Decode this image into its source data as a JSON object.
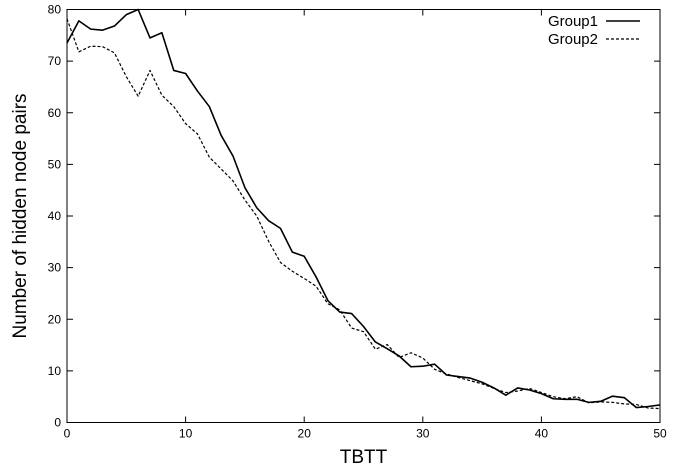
{
  "chart_data": {
    "type": "line",
    "title": "",
    "xlabel": "TBTT",
    "ylabel": "Number of hidden node pairs",
    "xlim": [
      0,
      50
    ],
    "ylim": [
      0,
      80
    ],
    "xticks": [
      0,
      10,
      20,
      30,
      40,
      50
    ],
    "yticks": [
      0,
      10,
      20,
      30,
      40,
      50,
      60,
      70,
      80
    ],
    "grid": false,
    "legend_position": "top-right",
    "x": [
      0,
      1,
      2,
      3,
      4,
      5,
      6,
      7,
      8,
      9,
      10,
      11,
      12,
      13,
      14,
      15,
      16,
      17,
      18,
      19,
      20,
      21,
      22,
      23,
      24,
      25,
      26,
      27,
      28,
      29,
      30,
      31,
      32,
      33,
      34,
      35,
      36,
      37,
      38,
      39,
      40,
      41,
      42,
      43,
      44,
      45,
      46,
      47,
      48,
      49,
      50
    ],
    "series": [
      {
        "name": "Group1",
        "style": "solid",
        "values": [
          73.5,
          77.8,
          76.2,
          76.0,
          76.8,
          79.0,
          80.0,
          74.5,
          75.5,
          68.2,
          67.6,
          64.2,
          61.2,
          55.6,
          51.6,
          45.5,
          41.6,
          39.1,
          37.6,
          33.0,
          32.2,
          28.2,
          23.6,
          21.4,
          21.1,
          18.6,
          15.6,
          14.3,
          12.9,
          10.8,
          10.9,
          11.3,
          9.2,
          8.9,
          8.6,
          7.8,
          6.7,
          5.3,
          6.7,
          6.3,
          5.6,
          4.6,
          4.5,
          4.5,
          3.9,
          4.1,
          5.1,
          4.8,
          2.9,
          3.1,
          3.4
        ]
      },
      {
        "name": "Group2",
        "style": "dashed",
        "values": [
          78.2,
          71.8,
          72.9,
          72.8,
          71.6,
          67.0,
          63.2,
          68.2,
          63.4,
          61.2,
          57.9,
          55.9,
          51.4,
          49.1,
          46.8,
          43.1,
          40.0,
          35.1,
          31.0,
          29.3,
          27.9,
          26.4,
          23.0,
          21.8,
          18.3,
          17.6,
          14.2,
          15.1,
          12.6,
          13.5,
          12.5,
          10.3,
          9.4,
          8.7,
          8.1,
          7.5,
          6.6,
          5.8,
          6.1,
          6.6,
          5.8,
          5.0,
          4.6,
          5.0,
          3.8,
          4.0,
          3.9,
          3.6,
          3.5,
          2.8,
          2.7
        ]
      }
    ]
  }
}
